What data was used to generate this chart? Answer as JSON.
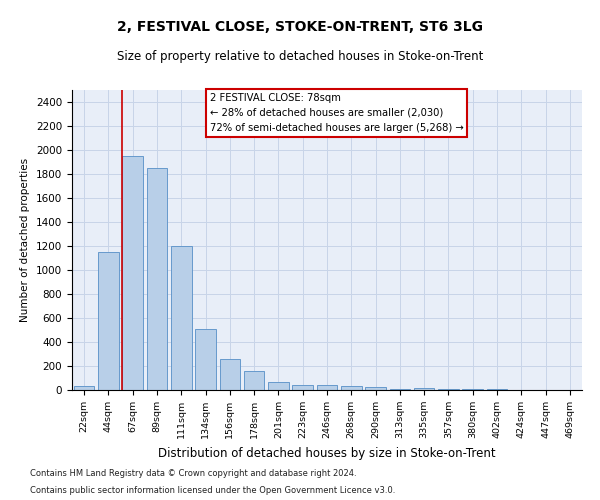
{
  "title": "2, FESTIVAL CLOSE, STOKE-ON-TRENT, ST6 3LG",
  "subtitle": "Size of property relative to detached houses in Stoke-on-Trent",
  "xlabel": "Distribution of detached houses by size in Stoke-on-Trent",
  "ylabel": "Number of detached properties",
  "footnote1": "Contains HM Land Registry data © Crown copyright and database right 2024.",
  "footnote2": "Contains public sector information licensed under the Open Government Licence v3.0.",
  "categories": [
    "22sqm",
    "44sqm",
    "67sqm",
    "89sqm",
    "111sqm",
    "134sqm",
    "156sqm",
    "178sqm",
    "201sqm",
    "223sqm",
    "246sqm",
    "268sqm",
    "290sqm",
    "313sqm",
    "335sqm",
    "357sqm",
    "380sqm",
    "402sqm",
    "424sqm",
    "447sqm",
    "469sqm"
  ],
  "values": [
    30,
    1150,
    1950,
    1850,
    1200,
    510,
    260,
    155,
    70,
    40,
    40,
    35,
    25,
    10,
    15,
    5,
    5,
    5,
    2,
    2,
    2
  ],
  "bar_color": "#b8cfe8",
  "bar_edge_color": "#6699cc",
  "annotation_line1": "2 FESTIVAL CLOSE: 78sqm",
  "annotation_line2": "← 28% of detached houses are smaller (2,030)",
  "annotation_line3": "72% of semi-detached houses are larger (5,268) →",
  "vline_x": 1.55,
  "vline_color": "#cc0000",
  "annotation_box_color": "#ffffff",
  "annotation_box_edge": "#cc0000",
  "ylim_max": 2500,
  "yticks": [
    0,
    200,
    400,
    600,
    800,
    1000,
    1200,
    1400,
    1600,
    1800,
    2000,
    2200,
    2400
  ],
  "grid_color": "#c8d4e8",
  "background_color": "#e8eef8",
  "title_fontsize": 10,
  "subtitle_fontsize": 8.5
}
